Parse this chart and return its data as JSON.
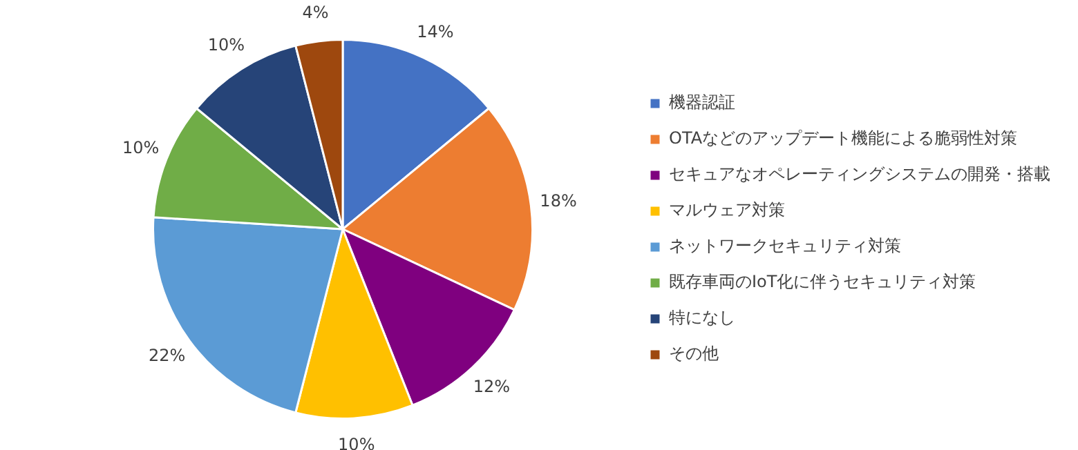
{
  "chart_data": {
    "type": "pie",
    "categories": [
      "機器認証",
      "OTAなどのアップデート機能による脆弱性対策",
      "セキュアなオペレーティングシステムの開発・搭載",
      "マルウェア対策",
      "ネットワークセキュリティ対策",
      "既存車両のIoT化に伴うセキュリティ対策",
      "特になし",
      "その他"
    ],
    "values": [
      14,
      18,
      12,
      10,
      22,
      10,
      10,
      4
    ],
    "colors": [
      "#4472c4",
      "#ed7d31",
      "#7f007f",
      "#ffc000",
      "#5b9bd5",
      "#70ad47",
      "#264478",
      "#9e480e"
    ],
    "value_labels": [
      "14%",
      "18%",
      "12%",
      "10%",
      "22%",
      "10%",
      "10%",
      "4%"
    ],
    "legend": "right"
  }
}
